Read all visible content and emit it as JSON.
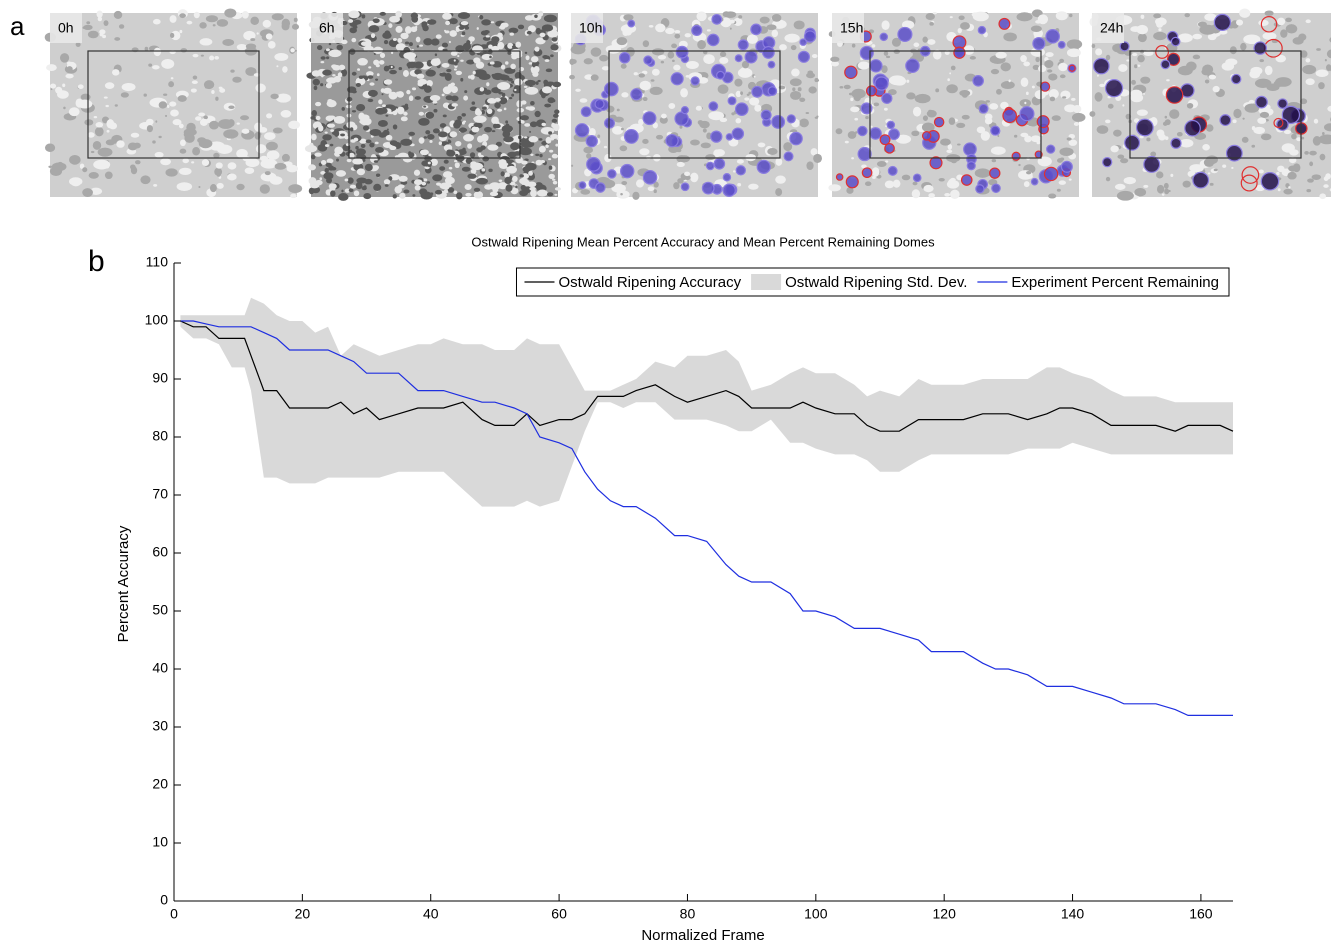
{
  "figure": {
    "panel_labels": [
      "a",
      "b"
    ],
    "images": [
      {
        "label": "0h"
      },
      {
        "label": "6h"
      },
      {
        "label": "10h"
      },
      {
        "label": "15h"
      },
      {
        "label": "24h"
      }
    ]
  },
  "chart_data": {
    "type": "line",
    "title": "Ostwald Ripening Mean Percent Accuracy and Mean Percent Remaining Domes",
    "x_label": "Normalized Frame",
    "y_label": "Percent Accuracy",
    "xlim": [
      0,
      165
    ],
    "ylim": [
      0,
      110
    ],
    "xticks": [
      0,
      20,
      40,
      60,
      80,
      100,
      120,
      140,
      160
    ],
    "yticks": [
      0,
      10,
      20,
      30,
      40,
      50,
      60,
      70,
      80,
      90,
      100,
      110
    ],
    "legend": "top-right",
    "x": [
      1,
      3,
      5,
      7,
      9,
      11,
      12,
      14,
      16,
      18,
      20,
      22,
      24,
      26,
      28,
      30,
      32,
      35,
      38,
      40,
      42,
      45,
      48,
      50,
      53,
      55,
      57,
      60,
      62,
      64,
      66,
      68,
      70,
      72,
      75,
      78,
      80,
      83,
      86,
      88,
      90,
      93,
      96,
      98,
      100,
      103,
      106,
      108,
      110,
      113,
      116,
      118,
      120,
      123,
      126,
      128,
      130,
      133,
      136,
      138,
      140,
      143,
      146,
      148,
      150,
      153,
      156,
      158,
      160,
      163,
      165
    ],
    "series": [
      {
        "name": "Ostwald Ripening Accuracy",
        "color": "#000000",
        "values": [
          100,
          99,
          99,
          97,
          97,
          97,
          94,
          88,
          88,
          85,
          85,
          85,
          85,
          86,
          84,
          85,
          83,
          84,
          85,
          85,
          85,
          86,
          83,
          82,
          82,
          84,
          82,
          83,
          83,
          84,
          87,
          87,
          87,
          88,
          89,
          87,
          86,
          87,
          88,
          87,
          85,
          85,
          85,
          86,
          85,
          84,
          84,
          82,
          81,
          81,
          83,
          83,
          83,
          83,
          84,
          84,
          84,
          83,
          84,
          85,
          85,
          84,
          82,
          82,
          82,
          82,
          81,
          82,
          82,
          82,
          81
        ]
      },
      {
        "name": "Ostwald Ripening Std. Dev.",
        "type": "band",
        "color": "#d9d9d9",
        "upper": [
          101,
          101,
          101,
          101,
          101,
          101,
          104,
          103,
          101,
          100,
          100,
          98,
          99,
          94,
          96,
          95,
          94,
          95,
          96,
          96,
          97,
          96,
          96,
          95,
          95,
          97,
          96,
          96,
          92,
          88,
          88,
          88,
          89,
          90,
          93,
          92,
          94,
          94,
          95,
          93,
          88,
          89,
          91,
          92,
          91,
          91,
          89,
          87,
          88,
          87,
          90,
          89,
          89,
          89,
          90,
          90,
          90,
          90,
          92,
          92,
          91,
          90,
          88,
          87,
          87,
          87,
          86,
          86,
          86,
          86,
          86
        ],
        "lower": [
          99,
          97,
          97,
          96,
          92,
          92,
          88,
          73,
          73,
          72,
          72,
          72,
          73,
          73,
          73,
          73,
          73,
          74,
          74,
          74,
          74,
          71,
          68,
          68,
          68,
          69,
          68,
          69,
          75,
          81,
          86,
          86,
          85,
          86,
          86,
          83,
          83,
          83,
          82,
          81,
          81,
          83,
          79,
          79,
          78,
          77,
          77,
          76,
          74,
          74,
          76,
          77,
          77,
          77,
          77,
          77,
          77,
          78,
          78,
          78,
          79,
          78,
          77,
          77,
          77,
          77,
          77,
          77,
          77,
          77,
          77
        ]
      },
      {
        "name": "Experiment Percent Remaining",
        "color": "#1f2fe0",
        "values": [
          100,
          100,
          99.5,
          99,
          99,
          99,
          99,
          98,
          97,
          95,
          95,
          95,
          95,
          94,
          93,
          91,
          91,
          91,
          88,
          88,
          88,
          87,
          86,
          86,
          85,
          84,
          80,
          79,
          78,
          74,
          71,
          69,
          68,
          68,
          66,
          63,
          63,
          62,
          58,
          56,
          55,
          55,
          53,
          50,
          50,
          49,
          47,
          47,
          47,
          46,
          45,
          43,
          43,
          43,
          41,
          40,
          40,
          39,
          37,
          37,
          37,
          36,
          35,
          34,
          34,
          34,
          33,
          32,
          32,
          32,
          32
        ]
      }
    ]
  }
}
